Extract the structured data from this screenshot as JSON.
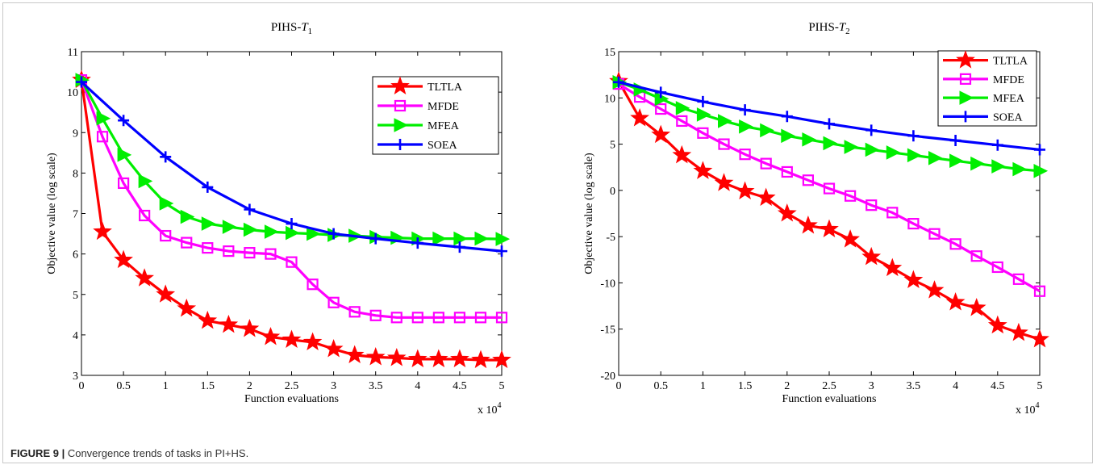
{
  "caption": {
    "label": "FIGURE 9 |",
    "text": "Convergence trends of tasks in PI+HS."
  },
  "colors": {
    "TLTLA": "#ff0000",
    "MFDE": "#ff00ff",
    "MFEA": "#00ee00",
    "SOEA": "#0000ff"
  },
  "chart_data": [
    {
      "type": "line",
      "title": "PIHS-T1",
      "title_base": "PIHS-",
      "title_var": "T",
      "title_sub": "1",
      "xlabel": "Function evaluations",
      "ylabel": "Objective value (log scale)",
      "x_multiplier_label": "x 10",
      "x_multiplier_exp": "4",
      "xlim": [
        0,
        5
      ],
      "ylim": [
        3,
        11
      ],
      "xticks": [
        0,
        0.5,
        1,
        1.5,
        2,
        2.5,
        3,
        3.5,
        4,
        4.5,
        5
      ],
      "xtick_labels": [
        "0",
        "0.5",
        "1",
        "1.5",
        "2",
        "2.5",
        "3",
        "3.5",
        "4",
        "4.5",
        "5"
      ],
      "yticks": [
        3,
        4,
        5,
        6,
        7,
        8,
        9,
        10,
        11
      ],
      "ytick_labels": [
        "3",
        "4",
        "5",
        "6",
        "7",
        "8",
        "9",
        "10",
        "11"
      ],
      "legend_position": "top-right",
      "x": [
        0,
        0.25,
        0.5,
        0.75,
        1,
        1.25,
        1.5,
        1.75,
        2,
        2.25,
        2.5,
        2.75,
        3,
        3.25,
        3.5,
        3.75,
        4,
        4.25,
        4.5,
        4.75,
        5
      ],
      "series": [
        {
          "name": "TLTLA",
          "marker": "star",
          "values": [
            10.3,
            6.55,
            5.85,
            5.4,
            5.0,
            4.65,
            4.35,
            4.25,
            4.15,
            3.95,
            3.88,
            3.82,
            3.65,
            3.5,
            3.45,
            3.43,
            3.4,
            3.4,
            3.4,
            3.38,
            3.38
          ]
        },
        {
          "name": "MFDE",
          "marker": "square",
          "values": [
            10.3,
            8.9,
            7.75,
            6.95,
            6.45,
            6.28,
            6.15,
            6.07,
            6.03,
            6.0,
            5.8,
            5.25,
            4.8,
            4.57,
            4.48,
            4.43,
            4.43,
            4.43,
            4.43,
            4.43,
            4.43
          ]
        },
        {
          "name": "MFEA",
          "marker": "triangle-right",
          "values": [
            10.3,
            9.35,
            8.45,
            7.8,
            7.25,
            6.92,
            6.75,
            6.67,
            6.6,
            6.55,
            6.52,
            6.5,
            6.47,
            6.45,
            6.42,
            6.4,
            6.38,
            6.38,
            6.38,
            6.38,
            6.37
          ]
        },
        {
          "name": "SOEA",
          "marker": "plus",
          "x": [
            0,
            0.5,
            1,
            1.5,
            2,
            2.5,
            3,
            3.5,
            4,
            4.5,
            5
          ],
          "values": [
            10.25,
            9.3,
            8.4,
            7.65,
            7.1,
            6.75,
            6.5,
            6.38,
            6.27,
            6.17,
            6.07
          ]
        }
      ]
    },
    {
      "type": "line",
      "title": "PIHS-T2",
      "title_base": "PIHS-",
      "title_var": "T",
      "title_sub": "2",
      "xlabel": "Function evaluations",
      "ylabel": "Objective value (log scale)",
      "x_multiplier_label": "x 10",
      "x_multiplier_exp": "4",
      "xlim": [
        0,
        5
      ],
      "ylim": [
        -20,
        15
      ],
      "xticks": [
        0,
        0.5,
        1,
        1.5,
        2,
        2.5,
        3,
        3.5,
        4,
        4.5,
        5
      ],
      "xtick_labels": [
        "0",
        "0.5",
        "1",
        "1.5",
        "2",
        "2.5",
        "3",
        "3.5",
        "4",
        "4.5",
        "5"
      ],
      "yticks": [
        -20,
        -15,
        -10,
        -5,
        0,
        5,
        10,
        15
      ],
      "ytick_labels": [
        "-20",
        "-15",
        "-10",
        "-5",
        "0",
        "5",
        "10",
        "15"
      ],
      "legend_position": "top-right",
      "x": [
        0,
        0.25,
        0.5,
        0.75,
        1,
        1.25,
        1.5,
        1.75,
        2,
        2.25,
        2.5,
        2.75,
        3,
        3.25,
        3.5,
        3.75,
        4,
        4.25,
        4.5,
        4.75,
        5
      ],
      "series": [
        {
          "name": "TLTLA",
          "marker": "star",
          "values": [
            11.8,
            7.8,
            6.0,
            3.8,
            2.1,
            0.8,
            -0.1,
            -0.8,
            -2.5,
            -3.8,
            -4.2,
            -5.3,
            -7.2,
            -8.4,
            -9.7,
            -10.8,
            -12.1,
            -12.7,
            -14.6,
            -15.4,
            -16.1
          ]
        },
        {
          "name": "MFDE",
          "marker": "square",
          "values": [
            11.5,
            10.1,
            8.8,
            7.5,
            6.2,
            5.0,
            3.9,
            2.9,
            2.0,
            1.1,
            0.2,
            -0.6,
            -1.6,
            -2.4,
            -3.6,
            -4.7,
            -5.8,
            -7.1,
            -8.3,
            -9.6,
            -10.9
          ]
        },
        {
          "name": "MFEA",
          "marker": "triangle-right",
          "values": [
            11.7,
            10.9,
            9.9,
            8.9,
            8.2,
            7.5,
            6.9,
            6.5,
            5.9,
            5.5,
            5.1,
            4.7,
            4.4,
            4.1,
            3.8,
            3.5,
            3.2,
            2.9,
            2.6,
            2.3,
            2.1
          ]
        },
        {
          "name": "SOEA",
          "marker": "plus",
          "x": [
            0,
            0.5,
            1,
            1.5,
            2,
            2.5,
            3,
            3.5,
            4,
            4.5,
            5
          ],
          "values": [
            11.7,
            10.6,
            9.6,
            8.7,
            8.0,
            7.2,
            6.5,
            5.9,
            5.4,
            4.9,
            4.4
          ]
        }
      ]
    }
  ]
}
